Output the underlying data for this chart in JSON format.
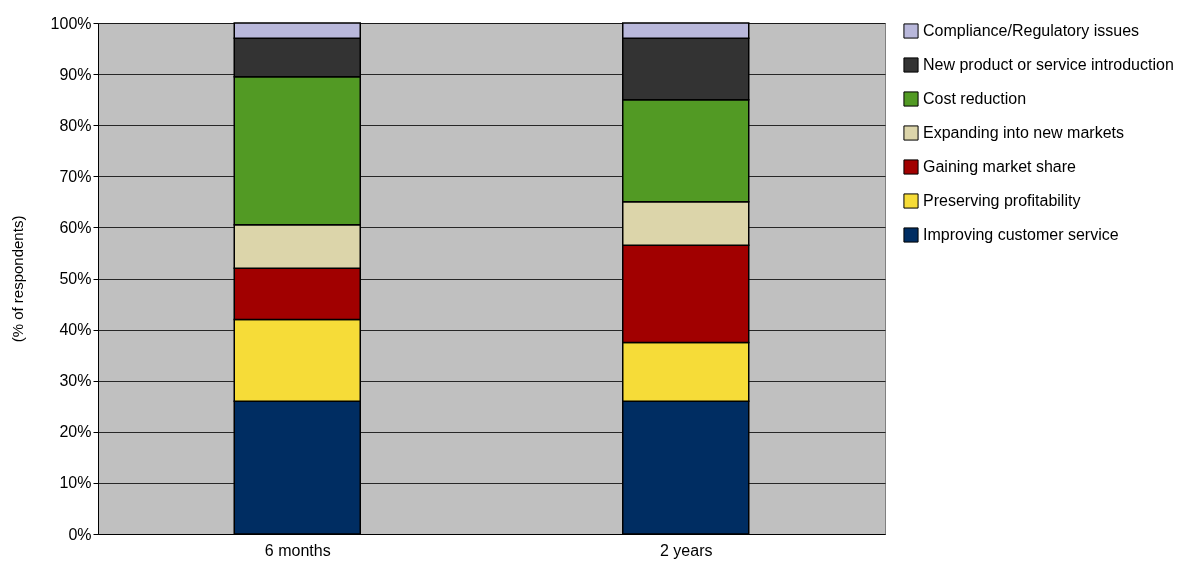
{
  "chart_data": {
    "type": "bar",
    "stacked": true,
    "ylabel": "(% of respondents)",
    "categories": [
      "6 months",
      "2 years"
    ],
    "series": [
      {
        "name": "Improving customer service",
        "color": "#002d62",
        "values": [
          26,
          26
        ]
      },
      {
        "name": "Preserving profitability",
        "color": "#f6dc38",
        "values": [
          16,
          11.5
        ]
      },
      {
        "name": "Gaining market share",
        "color": "#a10000",
        "values": [
          10,
          19
        ]
      },
      {
        "name": "Expanding into new markets",
        "color": "#dcd5aa",
        "values": [
          8.5,
          8.5
        ]
      },
      {
        "name": "Cost reduction",
        "color": "#529a24",
        "values": [
          29,
          20
        ]
      },
      {
        "name": "New product or service introduction",
        "color": "#333333",
        "values": [
          7.5,
          12
        ]
      },
      {
        "name": "Compliance/Regulatory issues",
        "color": "#b9b8db",
        "values": [
          3,
          3
        ]
      }
    ],
    "ylim": [
      0,
      100
    ],
    "yticks": [
      {
        "value": 0,
        "label": "0%"
      },
      {
        "value": 10,
        "label": "10%"
      },
      {
        "value": 20,
        "label": "20%"
      },
      {
        "value": 30,
        "label": "30%"
      },
      {
        "value": 40,
        "label": "40%"
      },
      {
        "value": 50,
        "label": "50%"
      },
      {
        "value": 60,
        "label": "60%"
      },
      {
        "value": 70,
        "label": "70%"
      },
      {
        "value": 80,
        "label": "80%"
      },
      {
        "value": 90,
        "label": "90%"
      },
      {
        "value": 100,
        "label": "100%"
      }
    ],
    "grid": "y",
    "legend": "right"
  }
}
